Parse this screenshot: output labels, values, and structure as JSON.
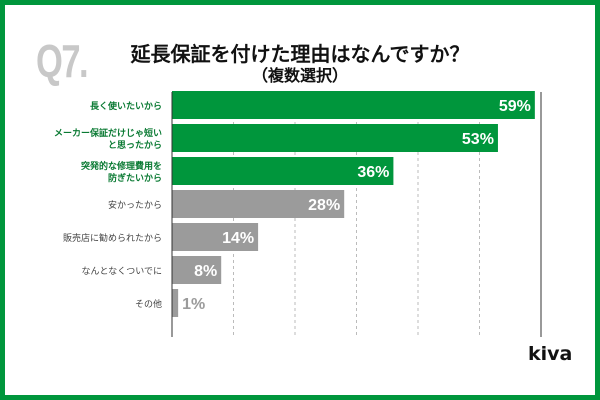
{
  "header": {
    "question_no": "Q7.",
    "title": "延長保証を付けた理由はなんですか？",
    "subtitle": "（複数選択）"
  },
  "logo": "kiva",
  "colors": {
    "highlight": "#00963c",
    "other": "#9b9b9b",
    "frame": "#00963c"
  },
  "chart_data": {
    "type": "bar",
    "orientation": "horizontal",
    "categories": [
      "長く使いたいから",
      "メーカー保証だけじゃ短い\nと思ったから",
      "突発的な修理費用を\n防ぎたいから",
      "安かったから",
      "販売店に勧められたから",
      "なんとなくついでに",
      "その他"
    ],
    "values": [
      59,
      53,
      36,
      28,
      14,
      8,
      1
    ],
    "data_labels": [
      "59%",
      "53%",
      "36%",
      "28%",
      "14%",
      "8%",
      "1%"
    ],
    "highlighted": [
      true,
      true,
      true,
      false,
      false,
      false,
      false
    ],
    "xlim": [
      0,
      60
    ],
    "grid": "vertical dashed",
    "unit": "%"
  }
}
